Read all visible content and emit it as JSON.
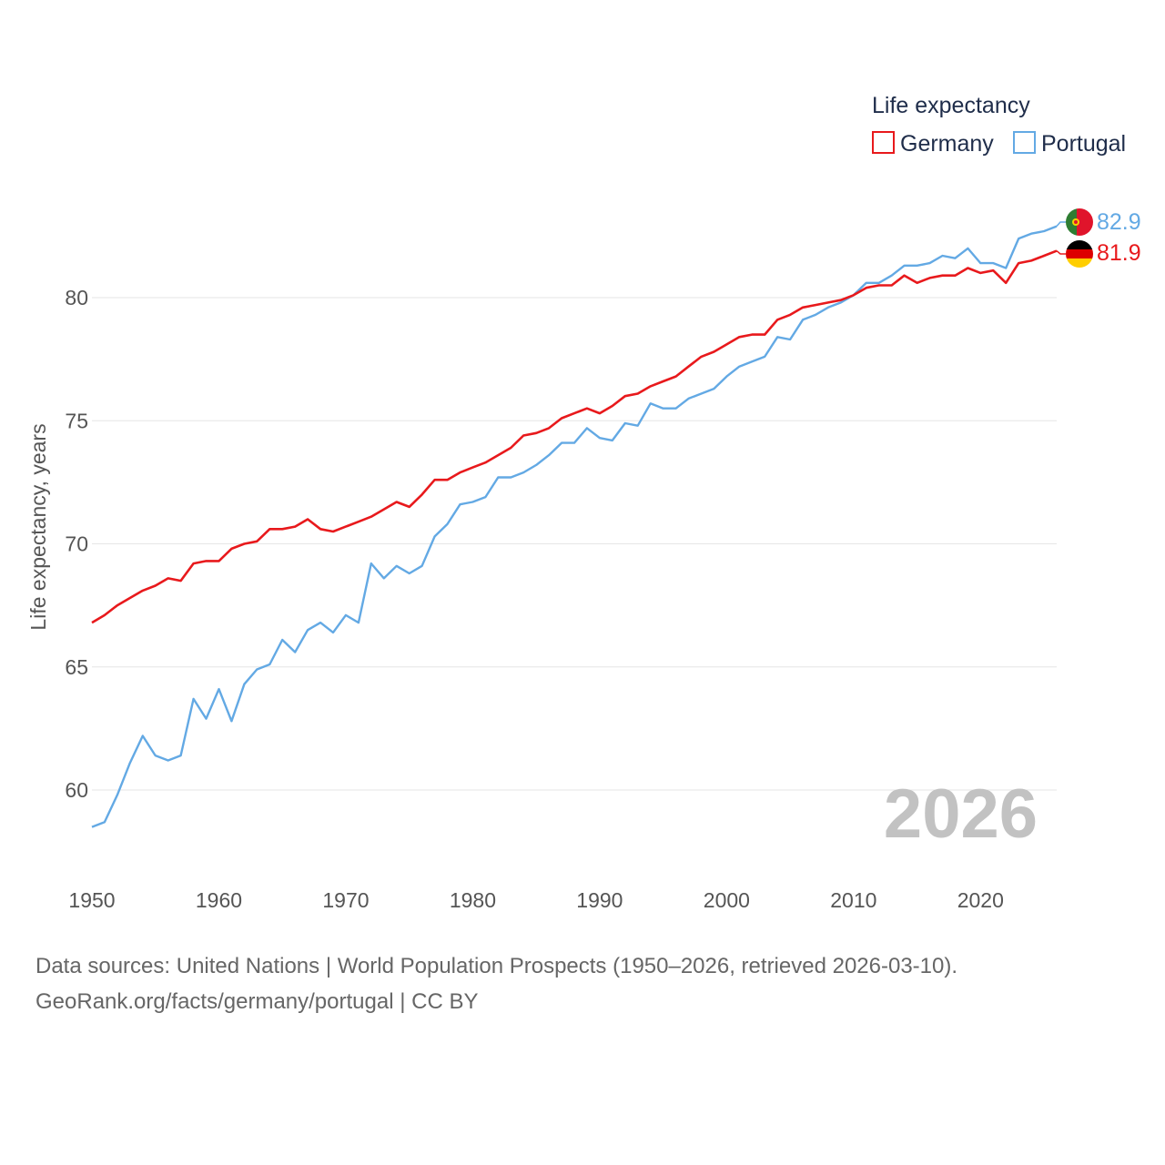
{
  "chart_data": {
    "type": "line",
    "title": "",
    "xlabel": "",
    "ylabel": "Life expectancy, years",
    "xlim": [
      1950,
      2026
    ],
    "ylim": [
      57.5,
      84
    ],
    "x_ticks": [
      1950,
      1960,
      1970,
      1980,
      1990,
      2000,
      2010,
      2020
    ],
    "y_ticks": [
      60,
      65,
      70,
      75,
      80
    ],
    "grid": "horizontal",
    "legend": {
      "title": "Life expectancy",
      "position": "top-right"
    },
    "year_label": "2026",
    "x": [
      1950,
      1951,
      1952,
      1953,
      1954,
      1955,
      1956,
      1957,
      1958,
      1959,
      1960,
      1961,
      1962,
      1963,
      1964,
      1965,
      1966,
      1967,
      1968,
      1969,
      1970,
      1971,
      1972,
      1973,
      1974,
      1975,
      1976,
      1977,
      1978,
      1979,
      1980,
      1981,
      1982,
      1983,
      1984,
      1985,
      1986,
      1987,
      1988,
      1989,
      1990,
      1991,
      1992,
      1993,
      1994,
      1995,
      1996,
      1997,
      1998,
      1999,
      2000,
      2001,
      2002,
      2003,
      2004,
      2005,
      2006,
      2007,
      2008,
      2009,
      2010,
      2011,
      2012,
      2013,
      2014,
      2015,
      2016,
      2017,
      2018,
      2019,
      2020,
      2021,
      2022,
      2023,
      2024,
      2025,
      2026
    ],
    "series": [
      {
        "name": "Germany",
        "color": "#e8191c",
        "end_label": "81.9",
        "flag": "germany-flag",
        "values": [
          66.8,
          67.1,
          67.5,
          67.8,
          68.1,
          68.3,
          68.6,
          68.5,
          69.2,
          69.3,
          69.3,
          69.8,
          70.0,
          70.1,
          70.6,
          70.6,
          70.7,
          71.0,
          70.6,
          70.5,
          70.7,
          70.9,
          71.1,
          71.4,
          71.7,
          71.5,
          72.0,
          72.6,
          72.6,
          72.9,
          73.1,
          73.3,
          73.6,
          73.9,
          74.4,
          74.5,
          74.7,
          75.1,
          75.3,
          75.5,
          75.3,
          75.6,
          76.0,
          76.1,
          76.4,
          76.6,
          76.8,
          77.2,
          77.6,
          77.8,
          78.1,
          78.4,
          78.5,
          78.5,
          79.1,
          79.3,
          79.6,
          79.7,
          79.8,
          79.9,
          80.1,
          80.4,
          80.5,
          80.5,
          80.9,
          80.6,
          80.8,
          80.9,
          80.9,
          81.2,
          81.0,
          81.1,
          80.6,
          81.4,
          81.5,
          81.7,
          81.9
        ]
      },
      {
        "name": "Portugal",
        "color": "#63a9e4",
        "end_label": "82.9",
        "flag": "portugal-flag",
        "values": [
          58.5,
          58.7,
          59.8,
          61.1,
          62.2,
          61.4,
          61.2,
          61.4,
          63.7,
          62.9,
          64.1,
          62.8,
          64.3,
          64.9,
          65.1,
          66.1,
          65.6,
          66.5,
          66.8,
          66.4,
          67.1,
          66.8,
          69.2,
          68.6,
          69.1,
          68.8,
          69.1,
          70.3,
          70.8,
          71.6,
          71.7,
          71.9,
          72.7,
          72.7,
          72.9,
          73.2,
          73.6,
          74.1,
          74.1,
          74.7,
          74.3,
          74.2,
          74.9,
          74.8,
          75.7,
          75.5,
          75.5,
          75.9,
          76.1,
          76.3,
          76.8,
          77.2,
          77.4,
          77.6,
          78.4,
          78.3,
          79.1,
          79.3,
          79.6,
          79.8,
          80.1,
          80.6,
          80.6,
          80.9,
          81.3,
          81.3,
          81.4,
          81.7,
          81.6,
          82.0,
          81.4,
          81.4,
          81.2,
          82.4,
          82.6,
          82.7,
          82.9
        ]
      }
    ]
  },
  "footer": {
    "line1": "Data sources: United Nations | World Population Prospects (1950–2026, retrieved 2026-03-10).",
    "line2": "GeoRank.org/facts/germany/portugal | CC BY"
  }
}
